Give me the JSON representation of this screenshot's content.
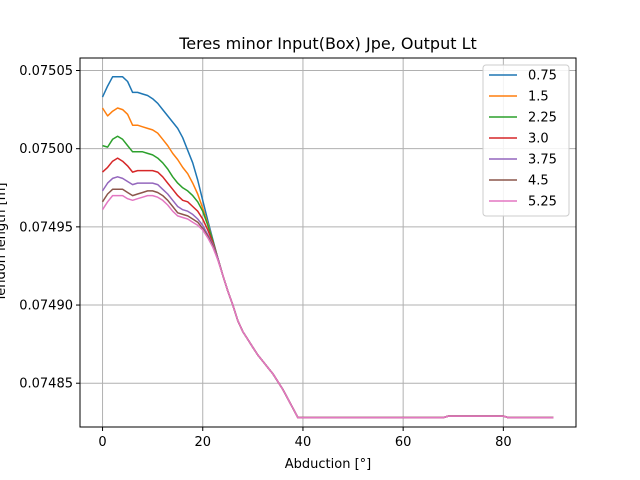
{
  "chart_data": {
    "type": "line",
    "title": "Teres minor Input(Box) Jpe, Output Lt",
    "xlabel": "Abduction [°]",
    "ylabel": "Tendon length [m]",
    "xlim": [
      -4.5,
      94.5
    ],
    "ylim": [
      0.074822,
      0.075058
    ],
    "x_ticks": [
      0,
      20,
      40,
      60,
      80
    ],
    "x_tick_labels": [
      "0",
      "20",
      "40",
      "60",
      "80"
    ],
    "y_ticks": [
      0.07485,
      0.0749,
      0.07495,
      0.075,
      0.07505
    ],
    "y_tick_labels": [
      "0.07485",
      "0.07490",
      "0.07495",
      "0.07500",
      "0.07505"
    ],
    "grid": true,
    "legend_position": "top-right",
    "x": [
      0,
      1,
      2,
      3,
      4,
      5,
      6,
      7,
      8,
      9,
      10,
      11,
      12,
      13,
      14,
      15,
      16,
      17,
      18,
      19,
      20,
      21,
      22,
      23,
      24,
      25,
      26,
      27,
      28,
      29,
      30,
      31,
      32,
      33,
      34,
      35,
      36,
      37,
      38,
      39,
      40,
      41,
      45,
      50,
      55,
      60,
      65,
      68,
      69,
      75,
      80,
      81,
      85,
      90
    ],
    "series": [
      {
        "name": "0.75",
        "color": "#1f77b4",
        "values": [
          0.075033,
          0.07504,
          0.075046,
          0.075046,
          0.075046,
          0.075043,
          0.075036,
          0.075036,
          0.075035,
          0.075034,
          0.075032,
          0.075029,
          0.075025,
          0.075021,
          0.075017,
          0.075013,
          0.075007,
          0.074999,
          0.074991,
          0.07498,
          0.074967,
          0.074954,
          0.074942,
          0.07493,
          0.074919,
          0.074909,
          0.0749,
          0.07489,
          0.074883,
          0.074878,
          0.074873,
          0.074868,
          0.074864,
          0.07486,
          0.074856,
          0.074851,
          0.074846,
          0.07484,
          0.074834,
          0.074828,
          0.074828,
          0.074828,
          0.074828,
          0.074828,
          0.074828,
          0.074828,
          0.074828,
          0.074828,
          0.074829,
          0.074829,
          0.074829,
          0.074828,
          0.074828,
          0.074828
        ]
      },
      {
        "name": "1.5",
        "color": "#ff7f0e",
        "values": [
          0.075026,
          0.075021,
          0.075024,
          0.075026,
          0.075025,
          0.075022,
          0.075015,
          0.075015,
          0.075014,
          0.075013,
          0.075012,
          0.07501,
          0.075006,
          0.075002,
          0.074997,
          0.074993,
          0.074988,
          0.074984,
          0.074978,
          0.074971,
          0.074962,
          0.074952,
          0.074941,
          0.07493,
          0.074919,
          0.074909,
          0.0749,
          0.07489,
          0.074883,
          0.074878,
          0.074873,
          0.074868,
          0.074864,
          0.07486,
          0.074856,
          0.074851,
          0.074846,
          0.07484,
          0.074834,
          0.074828,
          0.074828,
          0.074828,
          0.074828,
          0.074828,
          0.074828,
          0.074828,
          0.074828,
          0.074828,
          0.074829,
          0.074829,
          0.074829,
          0.074828,
          0.074828,
          0.074828
        ]
      },
      {
        "name": "2.25",
        "color": "#2ca02c",
        "values": [
          0.075002,
          0.075001,
          0.075006,
          0.075008,
          0.075006,
          0.075002,
          0.074998,
          0.074998,
          0.074998,
          0.074997,
          0.074996,
          0.074994,
          0.074991,
          0.074987,
          0.074982,
          0.074978,
          0.074975,
          0.074973,
          0.07497,
          0.074966,
          0.07496,
          0.074951,
          0.074941,
          0.07493,
          0.074919,
          0.074909,
          0.0749,
          0.07489,
          0.074883,
          0.074878,
          0.074873,
          0.074868,
          0.074864,
          0.07486,
          0.074856,
          0.074851,
          0.074846,
          0.07484,
          0.074834,
          0.074828,
          0.074828,
          0.074828,
          0.074828,
          0.074828,
          0.074828,
          0.074828,
          0.074828,
          0.074828,
          0.074829,
          0.074829,
          0.074829,
          0.074828,
          0.074828,
          0.074828
        ]
      },
      {
        "name": "3.0",
        "color": "#d62728",
        "values": [
          0.074985,
          0.074988,
          0.074992,
          0.074994,
          0.074992,
          0.074989,
          0.074985,
          0.074986,
          0.074986,
          0.074986,
          0.074986,
          0.074985,
          0.074982,
          0.074978,
          0.074974,
          0.07497,
          0.074967,
          0.074966,
          0.074963,
          0.07496,
          0.074955,
          0.074948,
          0.07494,
          0.07493,
          0.074919,
          0.074909,
          0.0749,
          0.07489,
          0.074883,
          0.074878,
          0.074873,
          0.074868,
          0.074864,
          0.07486,
          0.074856,
          0.074851,
          0.074846,
          0.07484,
          0.074834,
          0.074828,
          0.074828,
          0.074828,
          0.074828,
          0.074828,
          0.074828,
          0.074828,
          0.074828,
          0.074828,
          0.074829,
          0.074829,
          0.074829,
          0.074828,
          0.074828,
          0.074828
        ]
      },
      {
        "name": "3.75",
        "color": "#9467bd",
        "values": [
          0.074973,
          0.074978,
          0.074981,
          0.074982,
          0.074981,
          0.074979,
          0.074977,
          0.074978,
          0.074978,
          0.074978,
          0.074978,
          0.074977,
          0.074974,
          0.074971,
          0.074967,
          0.074963,
          0.074961,
          0.07496,
          0.074958,
          0.074955,
          0.074951,
          0.074945,
          0.074939,
          0.07493,
          0.074919,
          0.074909,
          0.0749,
          0.07489,
          0.074883,
          0.074878,
          0.074873,
          0.074868,
          0.074864,
          0.07486,
          0.074856,
          0.074851,
          0.074846,
          0.07484,
          0.074834,
          0.074828,
          0.074828,
          0.074828,
          0.074828,
          0.074828,
          0.074828,
          0.074828,
          0.074828,
          0.074828,
          0.074829,
          0.074829,
          0.074829,
          0.074828,
          0.074828,
          0.074828
        ]
      },
      {
        "name": "4.5",
        "color": "#8c564b",
        "values": [
          0.074966,
          0.074971,
          0.074974,
          0.074974,
          0.074974,
          0.074972,
          0.07497,
          0.074971,
          0.074972,
          0.074973,
          0.074973,
          0.074972,
          0.07497,
          0.074967,
          0.074963,
          0.074959,
          0.074958,
          0.074957,
          0.074955,
          0.074953,
          0.074949,
          0.074944,
          0.074938,
          0.074929,
          0.074919,
          0.074909,
          0.0749,
          0.07489,
          0.074883,
          0.074878,
          0.074873,
          0.074868,
          0.074864,
          0.07486,
          0.074856,
          0.074851,
          0.074846,
          0.07484,
          0.074834,
          0.074828,
          0.074828,
          0.074828,
          0.074828,
          0.074828,
          0.074828,
          0.074828,
          0.074828,
          0.074828,
          0.074829,
          0.074829,
          0.074829,
          0.074828,
          0.074828,
          0.074828
        ]
      },
      {
        "name": "5.25",
        "color": "#e377c2",
        "values": [
          0.074961,
          0.074966,
          0.07497,
          0.07497,
          0.07497,
          0.074968,
          0.074967,
          0.074968,
          0.074969,
          0.07497,
          0.07497,
          0.074969,
          0.074967,
          0.074964,
          0.07496,
          0.074957,
          0.074956,
          0.074955,
          0.074953,
          0.074951,
          0.074948,
          0.074943,
          0.074937,
          0.074929,
          0.074919,
          0.074909,
          0.0749,
          0.07489,
          0.074883,
          0.074878,
          0.074873,
          0.074868,
          0.074864,
          0.07486,
          0.074856,
          0.074851,
          0.074846,
          0.07484,
          0.074834,
          0.074828,
          0.074828,
          0.074828,
          0.074828,
          0.074828,
          0.074828,
          0.074828,
          0.074828,
          0.074828,
          0.074829,
          0.074829,
          0.074829,
          0.074828,
          0.074828,
          0.074828
        ]
      }
    ]
  }
}
